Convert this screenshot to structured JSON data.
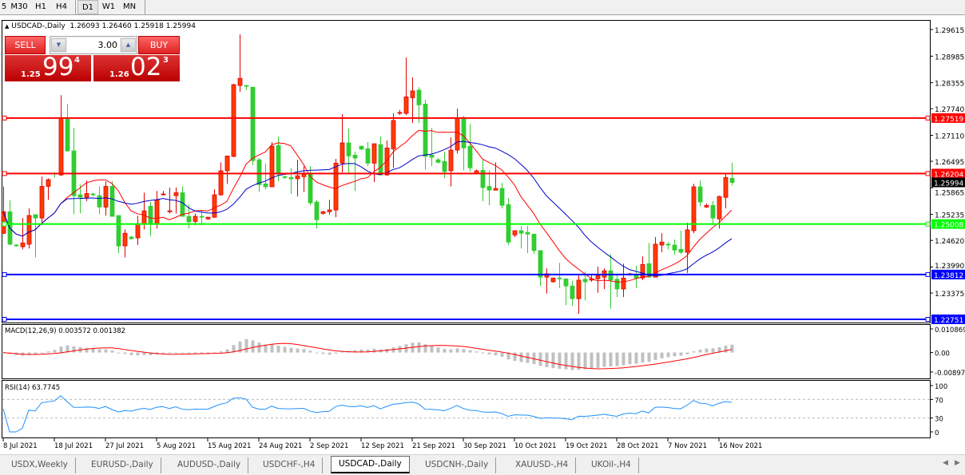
{
  "toolbar": {
    "timeframes": [
      {
        "label": "5",
        "active": false
      },
      {
        "label": "M30",
        "active": false
      },
      {
        "label": "H1",
        "active": false
      },
      {
        "label": "H4",
        "active": false
      },
      {
        "label": "D1",
        "active": true
      },
      {
        "label": "W1",
        "active": false
      },
      {
        "label": "MN",
        "active": false
      }
    ]
  },
  "chart_header": {
    "symbol": "USDCAD-,Daily",
    "ohlc": "1.26093 1.26460 1.25918 1.25994"
  },
  "trade_panel": {
    "sell_label": "SELL",
    "buy_label": "BUY",
    "lot": "3.00",
    "sell": {
      "prefix": "1.25",
      "big": "99",
      "sup": "4"
    },
    "buy": {
      "prefix": "1.26",
      "big": "02",
      "sup": "3"
    }
  },
  "colors": {
    "bull": "#ff3c00",
    "bear": "#32cd32",
    "ma_fast": "#ff0000",
    "ma_slow": "#0000cc",
    "macd_hist": "#c0c0c0",
    "macd_signal": "#ff0000",
    "rsi": "#1e90ff"
  },
  "chart_data": {
    "type": "candlestick",
    "price_ticks": [
      "1.29615",
      "1.28985",
      "1.28355",
      "1.27740",
      "1.27110",
      "1.26495",
      "1.25865",
      "1.25235",
      "1.24620",
      "1.23990",
      "1.23375"
    ],
    "ylim": [
      1.22751,
      1.29615
    ],
    "x_labels": [
      "8 Jul 2021",
      "18 Jul 2021",
      "27 Jul 2021",
      "5 Aug 2021",
      "15 Aug 2021",
      "24 Aug 2021",
      "2 Sep 2021",
      "12 Sep 2021",
      "21 Sep 2021",
      "30 Sep 2021",
      "10 Oct 2021",
      "19 Oct 2021",
      "28 Oct 2021",
      "7 Nov 2021",
      "16 Nov 2021"
    ],
    "current_price": "1.25994",
    "hlines": [
      {
        "price": "1.27519",
        "color": "#ff0000"
      },
      {
        "price": "1.26204",
        "color": "#ff0000"
      },
      {
        "price": "1.25008",
        "color": "#00ff00"
      },
      {
        "price": "1.23812",
        "color": "#0000ff"
      },
      {
        "price": "1.22751",
        "color": "#0000ff"
      }
    ],
    "ohlc": [
      [
        1.2479,
        1.259,
        1.2477,
        1.253
      ],
      [
        1.253,
        1.2557,
        1.2451,
        1.2453
      ],
      [
        1.2451,
        1.2453,
        1.2447,
        1.2449
      ],
      [
        1.2447,
        1.2515,
        1.2441,
        1.2456
      ],
      [
        1.2453,
        1.2538,
        1.2443,
        1.2521
      ],
      [
        1.2523,
        1.2524,
        1.2422,
        1.2515
      ],
      [
        1.2515,
        1.2613,
        1.2498,
        1.259
      ],
      [
        1.259,
        1.2609,
        1.2558,
        1.2606
      ],
      [
        1.2621,
        1.2623,
        1.2611,
        1.2619
      ],
      [
        1.2617,
        1.2806,
        1.2615,
        1.2751
      ],
      [
        1.2751,
        1.2785,
        1.2672,
        1.2674
      ],
      [
        1.2674,
        1.2729,
        1.2524,
        1.2568
      ],
      [
        1.257,
        1.2594,
        1.2526,
        1.2564
      ],
      [
        1.2564,
        1.2604,
        1.2555,
        1.2573
      ],
      [
        1.2572,
        1.2575,
        1.2566,
        1.257
      ],
      [
        1.2568,
        1.259,
        1.2524,
        1.2541
      ],
      [
        1.2541,
        1.2602,
        1.2521,
        1.259
      ],
      [
        1.259,
        1.2602,
        1.2519,
        1.2519
      ],
      [
        1.2521,
        1.2521,
        1.2432,
        1.2449
      ],
      [
        1.2449,
        1.2488,
        1.2422,
        1.2479
      ],
      [
        1.247,
        1.2472,
        1.2464,
        1.2466
      ],
      [
        1.2468,
        1.2521,
        1.2451,
        1.2502
      ],
      [
        1.25,
        1.2575,
        1.2488,
        1.2532
      ],
      [
        1.2543,
        1.2553,
        1.2472,
        1.2502
      ],
      [
        1.25,
        1.2579,
        1.249,
        1.2558
      ],
      [
        1.257,
        1.2579,
        1.2568,
        1.2572
      ],
      [
        1.253,
        1.2587,
        1.2526,
        1.2532
      ],
      [
        1.2568,
        1.2587,
        1.2526,
        1.2575
      ],
      [
        1.2575,
        1.259,
        1.2519,
        1.2519
      ],
      [
        1.2519,
        1.2547,
        1.249,
        1.2506
      ],
      [
        1.2507,
        1.2526,
        1.2498,
        1.2519
      ],
      [
        1.2519,
        1.2532,
        1.2498,
        1.2517
      ],
      [
        1.2513,
        1.2517,
        1.2511,
        1.2517
      ],
      [
        1.2517,
        1.2583,
        1.2515,
        1.257
      ],
      [
        1.257,
        1.2647,
        1.2568,
        1.2627
      ],
      [
        1.2627,
        1.2662,
        1.2596,
        1.2662
      ],
      [
        1.2661,
        1.2833,
        1.2659,
        1.2831
      ],
      [
        1.2829,
        1.295,
        1.2814,
        1.2846
      ],
      [
        1.2829,
        1.2829,
        1.2818,
        1.2827
      ],
      [
        1.2825,
        1.2825,
        1.264,
        1.2651
      ],
      [
        1.2653,
        1.2657,
        1.2577,
        1.2594
      ],
      [
        1.2596,
        1.2644,
        1.2583,
        1.2589
      ],
      [
        1.2589,
        1.2695,
        1.2589,
        1.2685
      ],
      [
        1.2687,
        1.2708,
        1.2602,
        1.2619
      ],
      [
        1.2613,
        1.2615,
        1.2608,
        1.2611
      ],
      [
        1.2611,
        1.2634,
        1.2572,
        1.2608
      ],
      [
        1.2608,
        1.2653,
        1.2566,
        1.2615
      ],
      [
        1.2613,
        1.2638,
        1.2577,
        1.2621
      ],
      [
        1.2621,
        1.2638,
        1.2545,
        1.2551
      ],
      [
        1.2553,
        1.2558,
        1.249,
        1.2511
      ],
      [
        1.2526,
        1.2532,
        1.2523,
        1.253
      ],
      [
        1.253,
        1.2558,
        1.2523,
        1.2534
      ],
      [
        1.2534,
        1.2655,
        1.2517,
        1.2645
      ],
      [
        1.2645,
        1.2761,
        1.2623,
        1.2693
      ],
      [
        1.2693,
        1.2727,
        1.2619,
        1.2662
      ],
      [
        1.2664,
        1.2672,
        1.2579,
        1.2657
      ],
      [
        1.2685,
        1.2687,
        1.2676,
        1.2678
      ],
      [
        1.2679,
        1.2695,
        1.2638,
        1.2645
      ],
      [
        1.2645,
        1.2691,
        1.26,
        1.2691
      ],
      [
        1.2689,
        1.2708,
        1.2617,
        1.2617
      ],
      [
        1.2617,
        1.2699,
        1.2615,
        1.2681
      ],
      [
        1.2679,
        1.2763,
        1.2634,
        1.2746
      ],
      [
        1.2763,
        1.2771,
        1.2759,
        1.2765
      ],
      [
        1.2763,
        1.2895,
        1.2759,
        1.2802
      ],
      [
        1.28,
        1.2848,
        1.274,
        1.2816
      ],
      [
        1.2818,
        1.2825,
        1.274,
        1.2783
      ],
      [
        1.2785,
        1.2795,
        1.263,
        1.2661
      ],
      [
        1.2664,
        1.2729,
        1.2638,
        1.2659
      ],
      [
        1.2653,
        1.2657,
        1.2644,
        1.2647
      ],
      [
        1.2649,
        1.2672,
        1.2609,
        1.2625
      ],
      [
        1.2627,
        1.2706,
        1.259,
        1.2676
      ],
      [
        1.2676,
        1.2774,
        1.2668,
        1.2751
      ],
      [
        1.2753,
        1.2757,
        1.2628,
        1.2681
      ],
      [
        1.2685,
        1.2738,
        1.2625,
        1.2634
      ],
      [
        1.2621,
        1.263,
        1.2619,
        1.2627
      ],
      [
        1.2628,
        1.2653,
        1.2555,
        1.2587
      ],
      [
        1.259,
        1.2628,
        1.2545,
        1.2581
      ],
      [
        1.2581,
        1.2647,
        1.2581,
        1.2585
      ],
      [
        1.2585,
        1.2598,
        1.2538,
        1.2545
      ],
      [
        1.2547,
        1.2562,
        1.2451,
        1.2458
      ],
      [
        1.2475,
        1.2485,
        1.247,
        1.2485
      ],
      [
        1.2485,
        1.2496,
        1.2443,
        1.2479
      ],
      [
        1.2481,
        1.2496,
        1.2432,
        1.2477
      ],
      [
        1.2477,
        1.2477,
        1.243,
        1.2438
      ],
      [
        1.2438,
        1.2438,
        1.2354,
        1.2375
      ],
      [
        1.2375,
        1.2396,
        1.2336,
        1.2383
      ],
      [
        1.2364,
        1.2373,
        1.2362,
        1.2373
      ],
      [
        1.2373,
        1.2409,
        1.2349,
        1.2371
      ],
      [
        1.2371,
        1.2371,
        1.2309,
        1.2354
      ],
      [
        1.2354,
        1.2366,
        1.2307,
        1.2324
      ],
      [
        1.2324,
        1.2381,
        1.2288,
        1.2368
      ],
      [
        1.237,
        1.2388,
        1.232,
        1.2364
      ],
      [
        1.2368,
        1.2379,
        1.2364,
        1.2371
      ],
      [
        1.2371,
        1.24,
        1.2338,
        1.2379
      ],
      [
        1.2375,
        1.2396,
        1.2347,
        1.239
      ],
      [
        1.239,
        1.243,
        1.23,
        1.2368
      ],
      [
        1.237,
        1.2381,
        1.2328,
        1.2347
      ],
      [
        1.2347,
        1.2407,
        1.2328,
        1.2373
      ],
      [
        1.2381,
        1.2385,
        1.2379,
        1.2383
      ],
      [
        1.2381,
        1.2402,
        1.2349,
        1.2373
      ],
      [
        1.2373,
        1.2424,
        1.2368,
        1.2405
      ],
      [
        1.2407,
        1.2456,
        1.2375,
        1.2375
      ],
      [
        1.2375,
        1.247,
        1.2375,
        1.2453
      ],
      [
        1.2451,
        1.2479,
        1.2434,
        1.2458
      ],
      [
        1.2453,
        1.2458,
        1.2441,
        1.2451
      ],
      [
        1.2451,
        1.2464,
        1.2428,
        1.2439
      ],
      [
        1.2441,
        1.2485,
        1.243,
        1.2434
      ],
      [
        1.2434,
        1.2504,
        1.2385,
        1.2487
      ],
      [
        1.2485,
        1.2596,
        1.2479,
        1.2589
      ],
      [
        1.2589,
        1.2604,
        1.2543,
        1.2553
      ],
      [
        1.2541,
        1.2549,
        1.2539,
        1.2545
      ],
      [
        1.2545,
        1.2555,
        1.2498,
        1.2515
      ],
      [
        1.2513,
        1.2568,
        1.249,
        1.2566
      ],
      [
        1.2564,
        1.2619,
        1.2538,
        1.2611
      ],
      [
        1.26093,
        1.2646,
        1.25918,
        1.25994
      ]
    ]
  },
  "macd": {
    "label": "MACD(12,26,9) 0.003572 0.001382",
    "ticks": [
      "0.010869",
      "0.00",
      "-0.008974"
    ],
    "range": [
      -0.008974,
      0.010869
    ]
  },
  "rsi": {
    "label": "RSI(14) 63.7745",
    "ticks": [
      "100",
      "70",
      "30",
      "0"
    ]
  },
  "tabs": [
    {
      "label": "USDX,Weekly",
      "active": false
    },
    {
      "label": "EURUSD-,Daily",
      "active": false
    },
    {
      "label": "AUDUSD-,Daily",
      "active": false
    },
    {
      "label": "USDCHF-,H4",
      "active": false
    },
    {
      "label": "USDCAD-,Daily",
      "active": true
    },
    {
      "label": "USDCNH-,Daily",
      "active": false
    },
    {
      "label": "XAUUSD-,H4",
      "active": false
    },
    {
      "label": "UKOil-,H4",
      "active": false
    }
  ]
}
